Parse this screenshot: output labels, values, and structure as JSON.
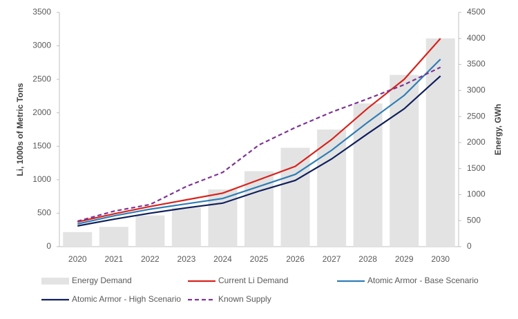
{
  "chart_data": {
    "type": "combo",
    "y_label": "Li, 1000s of Metric Tons",
    "y2_label": "Energy, GWh",
    "categories": [
      "2020",
      "2021",
      "2022",
      "2023",
      "2024",
      "2025",
      "2026",
      "2027",
      "2028",
      "2029",
      "2030"
    ],
    "ylim": [
      0,
      3500
    ],
    "yticks": [
      0,
      500,
      1000,
      1500,
      2000,
      2500,
      3000,
      3500
    ],
    "y2lim": [
      0,
      4500
    ],
    "y2ticks": [
      0,
      500,
      1000,
      1500,
      2000,
      2500,
      3000,
      3500,
      4000,
      4500
    ],
    "series": [
      {
        "name": "Energy Demand",
        "type": "bar",
        "axis": "y2",
        "color": "#e3e3e3",
        "values": [
          280,
          380,
          600,
          750,
          1100,
          1450,
          1900,
          2250,
          2750,
          3300,
          4000
        ]
      },
      {
        "name": "Current Li Demand",
        "type": "line",
        "color": "#d9221c",
        "values": [
          370,
          490,
          600,
          700,
          800,
          1000,
          1200,
          1600,
          2070,
          2500,
          3110
        ]
      },
      {
        "name": "Atomic Armor - Base Scenario",
        "type": "line",
        "color": "#2f7db5",
        "values": [
          340,
          460,
          560,
          640,
          720,
          900,
          1080,
          1440,
          1860,
          2260,
          2800
        ]
      },
      {
        "name": "Atomic Armor -  High Scenario",
        "type": "line",
        "color": "#0e1f5b",
        "values": [
          310,
          410,
          500,
          580,
          650,
          830,
          990,
          1310,
          1690,
          2060,
          2550
        ]
      },
      {
        "name": "Known Supply",
        "type": "line",
        "dashed": true,
        "color": "#7e3394",
        "values": [
          380,
          530,
          630,
          900,
          1110,
          1520,
          1780,
          2010,
          2210,
          2420,
          2680
        ]
      }
    ]
  }
}
